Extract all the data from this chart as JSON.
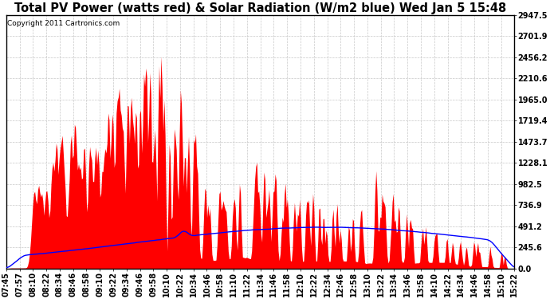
{
  "title": "Total PV Power (watts red) & Solar Radiation (W/m2 blue) Wed Jan 5 15:48",
  "copyright_text": "Copyright 2011 Cartronics.com",
  "y_max": 2947.5,
  "y_min": 0.0,
  "y_ticks": [
    0.0,
    245.6,
    491.2,
    736.9,
    982.5,
    1228.1,
    1473.7,
    1719.4,
    1965.0,
    2210.6,
    2456.2,
    2701.9,
    2947.5
  ],
  "x_labels": [
    "07:45",
    "07:57",
    "08:10",
    "08:22",
    "08:34",
    "08:46",
    "08:58",
    "09:10",
    "09:22",
    "09:34",
    "09:46",
    "09:58",
    "10:10",
    "10:22",
    "10:34",
    "10:46",
    "10:58",
    "11:10",
    "11:22",
    "11:34",
    "11:46",
    "11:58",
    "12:10",
    "12:22",
    "12:34",
    "12:46",
    "12:58",
    "13:10",
    "13:22",
    "13:34",
    "13:46",
    "13:58",
    "14:10",
    "14:22",
    "14:34",
    "14:46",
    "14:58",
    "15:10",
    "15:22"
  ],
  "bg_color": "#ffffff",
  "fill_color": "#ff0000",
  "line_color": "#0000ff",
  "grid_color": "#c8c8c8",
  "title_fontsize": 10.5,
  "annotation_fontsize": 6.5,
  "tick_fontsize": 7,
  "figwidth": 6.9,
  "figheight": 3.75,
  "dpi": 100
}
